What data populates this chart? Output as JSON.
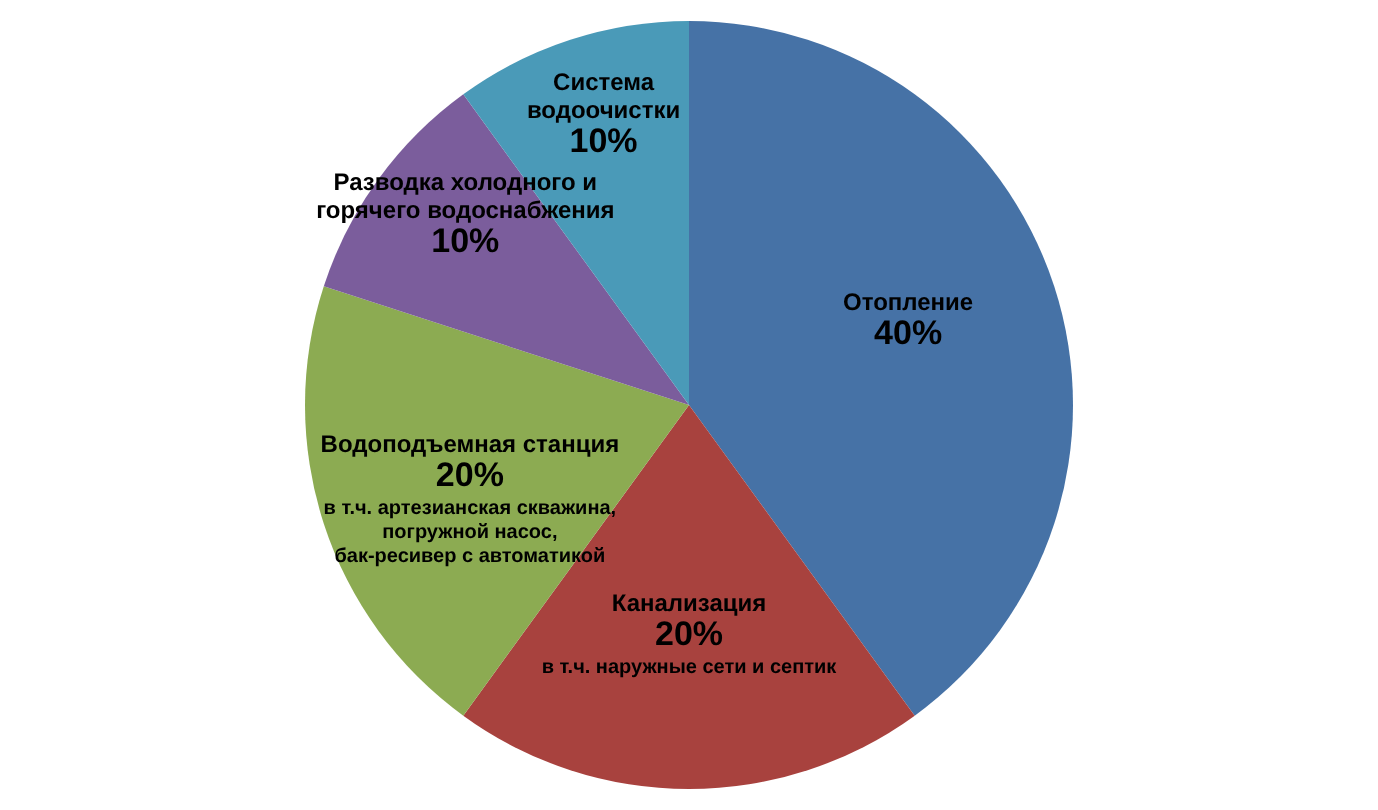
{
  "chart_data": {
    "type": "pie",
    "categories": [
      "Отопление",
      "Канализация",
      "Водоподъемная станция",
      "Разводка холодного и\nгорячего водоснабжения",
      "Система\nводоочистки"
    ],
    "values": [
      40,
      20,
      20,
      10,
      10
    ],
    "colors": [
      "#4672a6",
      "#a8423e",
      "#8cab52",
      "#7b5d9c",
      "#4a9ab8"
    ],
    "value_labels": [
      "40%",
      "20%",
      "20%",
      "10%",
      "10%"
    ],
    "annotations": [
      {
        "text": "в т.ч. наружные сети и септик",
        "x": "Канализация"
      },
      {
        "text": "в т.ч. артезианская скважина,\nпогружной насос,\nбак-ресивер с автоматикой",
        "x": "Водоподъемная станция"
      }
    ]
  }
}
